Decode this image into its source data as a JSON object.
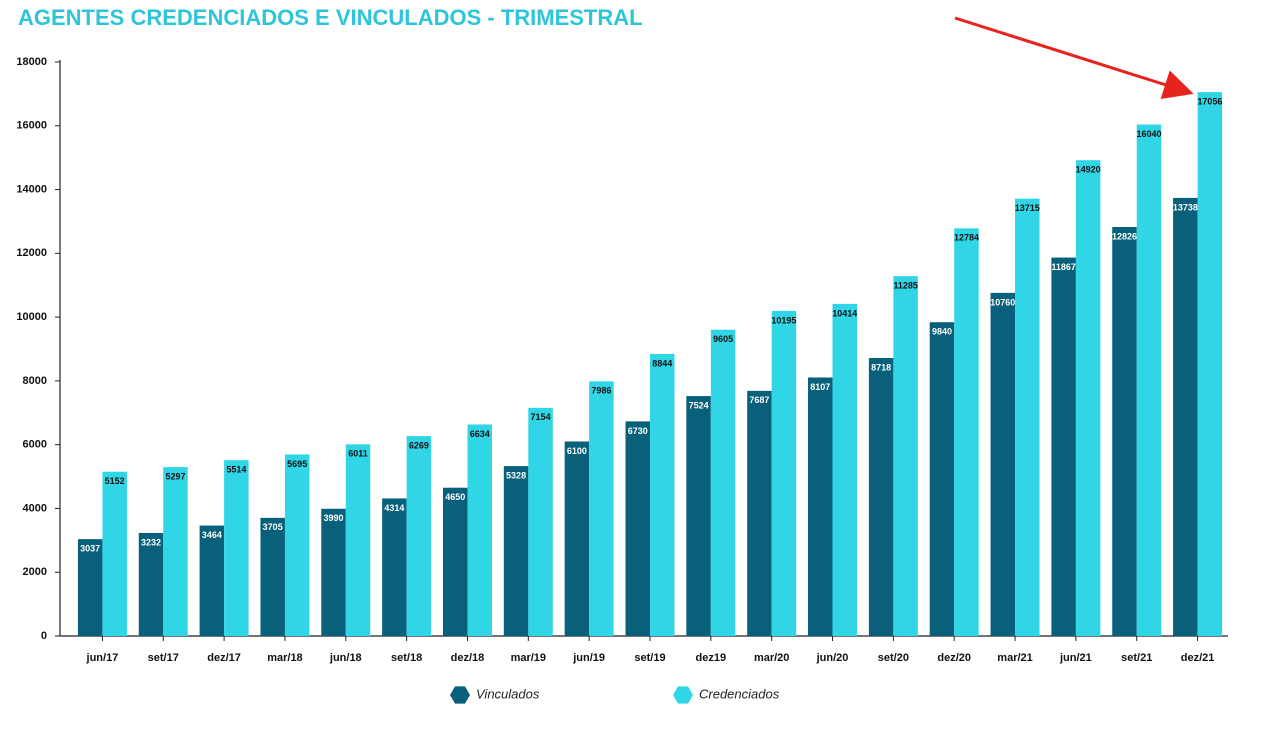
{
  "chart_data": {
    "type": "bar",
    "title": "AGENTES CREDENCIADOS E VINCULADOS - TRIMESTRAL",
    "categories": [
      "jun/17",
      "set/17",
      "dez/17",
      "mar/18",
      "jun/18",
      "set/18",
      "dez/18",
      "mar/19",
      "jun/19",
      "set/19",
      "dez19",
      "mar/20",
      "jun/20",
      "set/20",
      "dez/20",
      "mar/21",
      "jun/21",
      "set/21",
      "dez/21"
    ],
    "series": [
      {
        "name": "Vinculados",
        "color": "#08607a",
        "values": [
          3037,
          3232,
          3464,
          3705,
          3990,
          4314,
          4650,
          5328,
          6100,
          6730,
          7524,
          7687,
          8107,
          8718,
          9840,
          10760,
          11867,
          12826,
          13738
        ]
      },
      {
        "name": "Credenciados",
        "color": "#31d6e6",
        "values": [
          5152,
          5297,
          5514,
          5695,
          6011,
          6269,
          6634,
          7154,
          7986,
          8844,
          9605,
          10195,
          10414,
          11285,
          12784,
          13715,
          14920,
          16040,
          17056
        ]
      }
    ],
    "ylim": [
      0,
      18000
    ],
    "yticks": [
      0,
      2000,
      4000,
      6000,
      8000,
      10000,
      12000,
      14000,
      16000,
      18000
    ],
    "title_color": "#2ec5d8"
  }
}
